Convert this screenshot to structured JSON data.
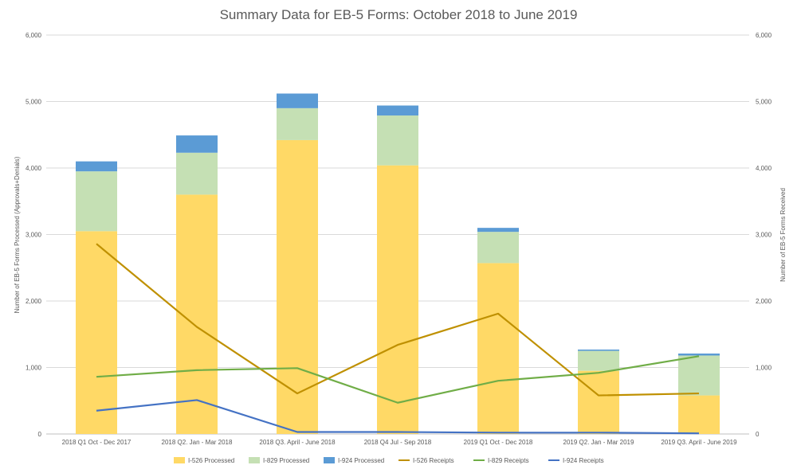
{
  "chart_data": {
    "type": "bar",
    "title": "Summary Data for EB-5 Forms: October 2018 to June 2019",
    "ylabel": "Number of EB-5 Forms Processed (Approvals+Denials)",
    "y2label": "Number of EB-5 Forms Received",
    "ylim": [
      0,
      6000
    ],
    "y2lim": [
      0,
      6000
    ],
    "yticks": [
      "0",
      "1,000",
      "2,000",
      "3,000",
      "4,000",
      "5,000",
      "6,000"
    ],
    "categories": [
      "2018 Q1 Oct - Dec 2017",
      "2018 Q2. Jan - Mar 2018",
      "2018 Q3. April - June 2018",
      "2018 Q4 Jul - Sep 2018",
      "2019 Q1 Oct - Dec 2018",
      "2019 Q2. Jan - Mar 2019",
      "2019 Q3. April - June 2019"
    ],
    "series": [
      {
        "name": "I-526 Processed",
        "kind": "bar",
        "stack": "processed",
        "color": "#FFD966",
        "values": [
          3050,
          3600,
          4420,
          4040,
          2570,
          950,
          580
        ]
      },
      {
        "name": "I-829 Processed",
        "kind": "bar",
        "stack": "processed",
        "color": "#C5E0B4",
        "values": [
          900,
          630,
          480,
          750,
          470,
          300,
          600
        ]
      },
      {
        "name": "I-924 Processed",
        "kind": "bar",
        "stack": "processed",
        "color": "#5B9BD5",
        "values": [
          150,
          260,
          220,
          150,
          60,
          20,
          30
        ]
      },
      {
        "name": "I-526 Receipts",
        "kind": "line",
        "color": "#BF9000",
        "values": [
          2860,
          1610,
          610,
          1340,
          1810,
          580,
          610
        ]
      },
      {
        "name": "I-829 Receipts",
        "kind": "line",
        "color": "#70AD47",
        "values": [
          860,
          960,
          990,
          470,
          800,
          920,
          1170
        ]
      },
      {
        "name": "I-924 Receipts",
        "kind": "line",
        "color": "#4472C4",
        "values": [
          350,
          510,
          30,
          30,
          20,
          20,
          10
        ]
      }
    ],
    "grid": true,
    "legend": "bottom"
  }
}
